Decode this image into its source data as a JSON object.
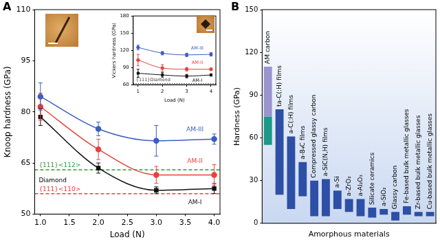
{
  "chart_data": [
    {
      "type": "line",
      "title": "A",
      "x_label": "Load (N)",
      "y_label": "Knoop hardness (GPa)",
      "x": [
        1,
        2,
        3,
        4
      ],
      "xlim": [
        0.9,
        4.1
      ],
      "xticks": [
        {
          "value": 1,
          "label": "1.0"
        },
        {
          "value": 1.5,
          "label": "1.5"
        },
        {
          "value": 2,
          "label": "2.0"
        },
        {
          "value": 2.5,
          "label": "2.5"
        },
        {
          "value": 3,
          "label": "3.0"
        },
        {
          "value": 3.5,
          "label": "3.5"
        },
        {
          "value": 4,
          "label": "4.0"
        }
      ],
      "ylim": [
        50,
        110
      ],
      "yticks": [
        50,
        65,
        80,
        95,
        110
      ],
      "series": [
        {
          "name": "AM-I",
          "color": "#111111",
          "marker": "square",
          "line_style": "solid",
          "values": [
            78.5,
            63.5,
            57,
            57.5
          ],
          "errors": [
            2.5,
            1.5,
            1,
            1.5
          ]
        },
        {
          "name": "AM-II",
          "color": "#e8413c",
          "marker": "circle",
          "line_style": "solid",
          "values": [
            81.5,
            69,
            61.5,
            61.5
          ],
          "errors": [
            4,
            3,
            2.5,
            3
          ]
        },
        {
          "name": "AM-III",
          "color": "#3a5fbf",
          "marker": "circle",
          "line_style": "solid",
          "values": [
            84.5,
            75,
            71.5,
            72
          ],
          "errors": [
            4,
            2,
            4.5,
            1.5
          ]
        }
      ],
      "reference_lines": [
        {
          "name": "{111}<112>",
          "value": 63,
          "color": "#2e9b3a",
          "line_style": "dashed"
        },
        {
          "name": "{111}<110>",
          "value": 56,
          "color": "#e8413c",
          "line_style": "dashed"
        }
      ],
      "annotations": [
        "Diamond"
      ]
    },
    {
      "type": "line",
      "x_label": "Load (N)",
      "y_label": "Vickers hardness (GPa)",
      "x": [
        1,
        2,
        3,
        4
      ],
      "xlim": [
        0.8,
        4.2
      ],
      "xticks": [
        1,
        2,
        3,
        4
      ],
      "ylim": [
        60,
        180
      ],
      "yticks": [
        60,
        90,
        120,
        150,
        180
      ],
      "series": [
        {
          "name": "AM-I",
          "color": "#111111",
          "marker": "square",
          "line_style": "solid",
          "values": [
            80,
            77,
            75,
            77
          ],
          "errors": [
            7,
            4,
            3,
            2
          ]
        },
        {
          "name": "AM-II",
          "color": "#e8413c",
          "marker": "circle",
          "line_style": "solid",
          "values": [
            103,
            89,
            87,
            87
          ],
          "errors": [
            10,
            6,
            3,
            2
          ]
        },
        {
          "name": "AM-III",
          "color": "#3a5fbf",
          "marker": "circle",
          "line_style": "solid",
          "values": [
            125,
            115,
            112,
            113
          ],
          "errors": [
            4,
            3,
            3,
            3
          ]
        }
      ],
      "reference_lines": [
        {
          "name": "{111}Diamond",
          "value": 62,
          "color": "#444444",
          "line_style": "dotted"
        }
      ]
    },
    {
      "type": "bar",
      "title": "B",
      "x_label": "Amorphous materials",
      "y_label": "Hardness (GPa)",
      "categories": [
        "AM carbon",
        "ta-C(:H) films",
        "a-C(:H) films",
        "a-B₄C films",
        "Compressed glassy carbon",
        "a-SiC(N,H) films",
        "a-Si",
        "a-ZrO₂",
        "a-Al₂O₃",
        "Silicate ceramics",
        "a-SiO₂",
        "Glassy carbon",
        "Fe-based bulk metallic glasses",
        "Zr-based bulk metallic glasses",
        "Cu-based bulk metallic glasses"
      ],
      "ylim": [
        0,
        150
      ],
      "yticks": [
        0,
        30,
        60,
        90,
        120,
        150
      ],
      "series": [
        {
          "colors": [
            "#9a94cf",
            "#2d4fa6",
            "#2d4fa6",
            "#2d4fa6",
            "#2d4fa6",
            "#2d4fa6",
            "#2d4fa6",
            "#2d4fa6",
            "#2d4fa6",
            "#2d4fa6",
            "#2d4fa6",
            "#2d4fa6",
            "#2d4fa6",
            "#2d4fa6",
            "#2d4fa6"
          ],
          "values": [
            [
              75,
              110
            ],
            [
              20,
              80
            ],
            [
              10,
              61
            ],
            [
              19,
              43
            ],
            [
              5,
              30
            ],
            [
              5,
              31
            ],
            [
              10,
              23
            ],
            [
              8,
              17
            ],
            [
              5,
              17
            ],
            [
              4,
              11
            ],
            [
              6,
              10
            ],
            [
              2,
              8
            ],
            [
              6,
              12
            ],
            [
              5,
              8
            ],
            [
              5,
              8
            ]
          ]
        },
        {
          "color": "#1c9a87",
          "values": [
            [
              55,
              75
            ],
            null,
            null,
            null,
            null,
            null,
            null,
            null,
            null,
            null,
            null,
            null,
            null,
            null,
            null
          ]
        }
      ]
    }
  ]
}
